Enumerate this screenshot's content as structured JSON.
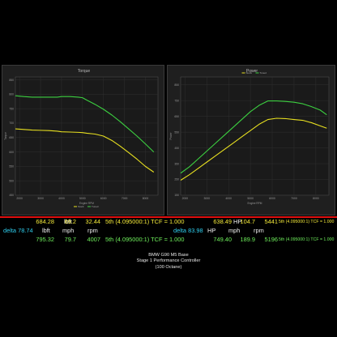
{
  "chart_data": [
    {
      "type": "line",
      "title": "Torque",
      "xlabel": "Engine RPM",
      "ylabel": "Torque",
      "x_ticks": [
        2000,
        3000,
        4000,
        5000,
        6000,
        7000,
        8000
      ],
      "y_ticks": [
        450,
        500,
        550,
        600,
        650,
        700,
        750,
        800,
        850
      ],
      "xlim": [
        1800,
        8600
      ],
      "ylim": [
        450,
        860
      ],
      "legend": "bottom-center",
      "grid": true,
      "series": [
        {
          "name": "Stock",
          "color": "#e8e020",
          "x": [
            1800,
            2200,
            2600,
            3000,
            3400,
            3800,
            4000,
            4400,
            4800,
            5000,
            5200,
            5600,
            6000,
            6400,
            6800,
            7200,
            7600,
            8000,
            8400
          ],
          "y": [
            680,
            678,
            676,
            675,
            674,
            672,
            670,
            669,
            668,
            667,
            665,
            662,
            655,
            640,
            620,
            598,
            575,
            550,
            530
          ]
        },
        {
          "name": "Tuned",
          "color": "#3cd040",
          "x": [
            1800,
            2200,
            2600,
            3000,
            3400,
            3800,
            4000,
            4400,
            4800,
            5000,
            5200,
            5600,
            6000,
            6400,
            6800,
            7200,
            7600,
            8000,
            8400
          ],
          "y": [
            795,
            792,
            790,
            790,
            790,
            790,
            792,
            792,
            790,
            788,
            780,
            765,
            748,
            728,
            705,
            680,
            655,
            628,
            600
          ]
        }
      ]
    },
    {
      "type": "line",
      "title": "Power",
      "xlabel": "Engine RPM",
      "ylabel": "Power",
      "x_ticks": [
        2000,
        3000,
        4000,
        5000,
        6000,
        7000,
        8000
      ],
      "y_ticks": [
        150,
        250,
        350,
        450,
        550,
        650,
        750,
        850
      ],
      "xlim": [
        1800,
        8600
      ],
      "ylim": [
        150,
        900
      ],
      "legend": "top-center",
      "grid": true,
      "series": [
        {
          "name": "Stock",
          "color": "#e8e020",
          "x": [
            1800,
            2200,
            2600,
            3000,
            3400,
            3800,
            4200,
            4600,
            5000,
            5400,
            5800,
            6200,
            6600,
            7000,
            7400,
            7800,
            8200,
            8500
          ],
          "y": [
            245,
            280,
            320,
            360,
            400,
            440,
            480,
            520,
            560,
            600,
            630,
            638,
            636,
            630,
            625,
            610,
            590,
            575
          ]
        },
        {
          "name": "Tuned",
          "color": "#3cd040",
          "x": [
            1800,
            2200,
            2600,
            3000,
            3400,
            3800,
            4200,
            4600,
            5000,
            5400,
            5800,
            6200,
            6600,
            7000,
            7400,
            7800,
            8200,
            8500
          ],
          "y": [
            290,
            330,
            380,
            430,
            480,
            530,
            580,
            630,
            680,
            720,
            748,
            748,
            745,
            740,
            730,
            712,
            690,
            660
          ]
        }
      ]
    }
  ],
  "results": {
    "row1": {
      "val1": "684.28",
      "unit1": "lbft",
      "val2": "69.2",
      "unit2": "mph",
      "val3": "32.44",
      "ratio": "5th (4.095000:1) TCF = 1.000",
      "val4": "638.49",
      "unit4": "HP",
      "val5": "104.7",
      "unit5": "mph",
      "val6": "5441",
      "ratio2": "5th (4.095000:1) TCF = 1.000"
    },
    "row2": {
      "delta1": "delta 78.74",
      "unit1": "lbft",
      "unit2": "mph",
      "unit3": "rpm",
      "delta2": "delta 83.98",
      "unit4": "HP",
      "unit5": "mph",
      "unit6": "rpm"
    },
    "row3": {
      "val1": "795.32",
      "val2": "79.7",
      "val3": "4007",
      "ratio": "5th (4.095000:1) TCF = 1.000",
      "val4": "749.40",
      "val5": "189.9",
      "val6": "5196",
      "ratio2": "5th (4.095000:1) TCF = 1.000"
    }
  },
  "caption": {
    "line1": "BMW G90 M5 Base",
    "line2": "Stage 1 Performance Controller",
    "line3": "(100 Octane)"
  }
}
